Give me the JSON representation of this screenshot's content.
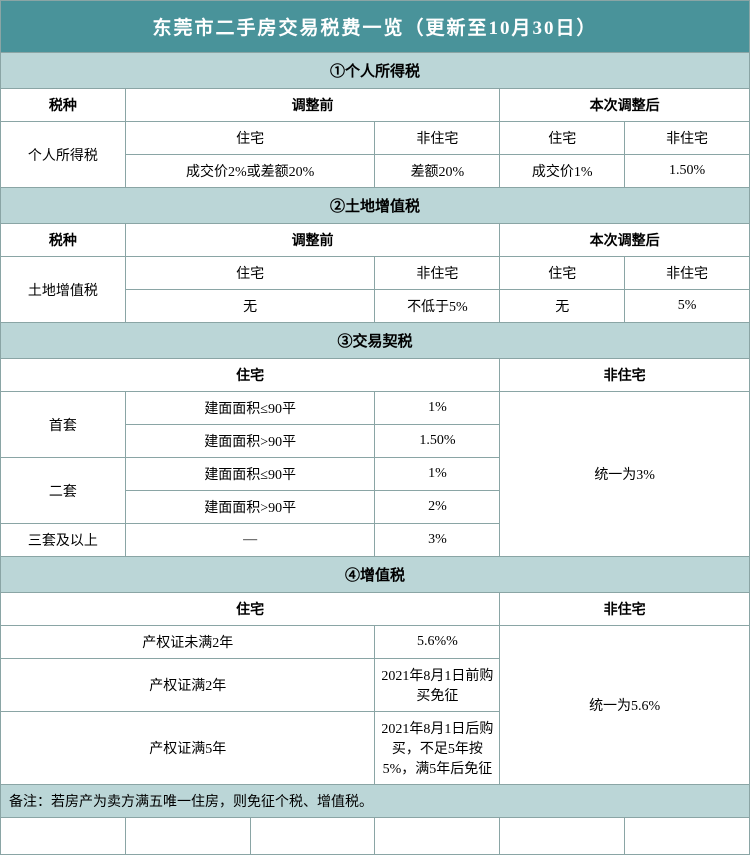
{
  "title": "东莞市二手房交易税费一览（更新至10月30日）",
  "section1": {
    "header": "①个人所得税",
    "taxType": "税种",
    "before": "调整前",
    "after": "本次调整后",
    "taxName": "个人所得税",
    "res": "住宅",
    "nonres": "非住宅",
    "beforeRes": "成交价2%或差额20%",
    "beforeNonres": "差额20%",
    "afterRes": "成交价1%",
    "afterNonres": "1.50%"
  },
  "section2": {
    "header": "②土地增值税",
    "taxType": "税种",
    "before": "调整前",
    "after": "本次调整后",
    "taxName": "土地增值税",
    "res": "住宅",
    "nonres": "非住宅",
    "beforeRes": "无",
    "beforeNonres": "不低于5%",
    "afterRes": "无",
    "afterNonres": "5%"
  },
  "section3": {
    "header": "③交易契税",
    "res": "住宅",
    "nonres": "非住宅",
    "row1Label": "首套",
    "row1a": "建面面积≤90平",
    "row1aVal": "1%",
    "row1b": "建面面积>90平",
    "row1bVal": "1.50%",
    "row2Label": "二套",
    "row2a": "建面面积≤90平",
    "row2aVal": "1%",
    "row2b": "建面面积>90平",
    "row2bVal": "2%",
    "row3Label": "三套及以上",
    "row3a": "—",
    "row3aVal": "3%",
    "nonresVal": "统一为3%"
  },
  "section4": {
    "header": "④增值税",
    "res": "住宅",
    "nonres": "非住宅",
    "row1a": "产权证未满2年",
    "row1aVal": "5.6%%",
    "row2a": "产权证满2年",
    "row2aVal": "2021年8月1日前购买免征",
    "row3a": "产权证满5年",
    "row3aVal": "2021年8月1日后购买，不足5年按5%，满5年后免征",
    "nonresVal": "统一为5.6%"
  },
  "note": "备注：若房产为卖方满五唯一住房，则免征个税、增值税。"
}
